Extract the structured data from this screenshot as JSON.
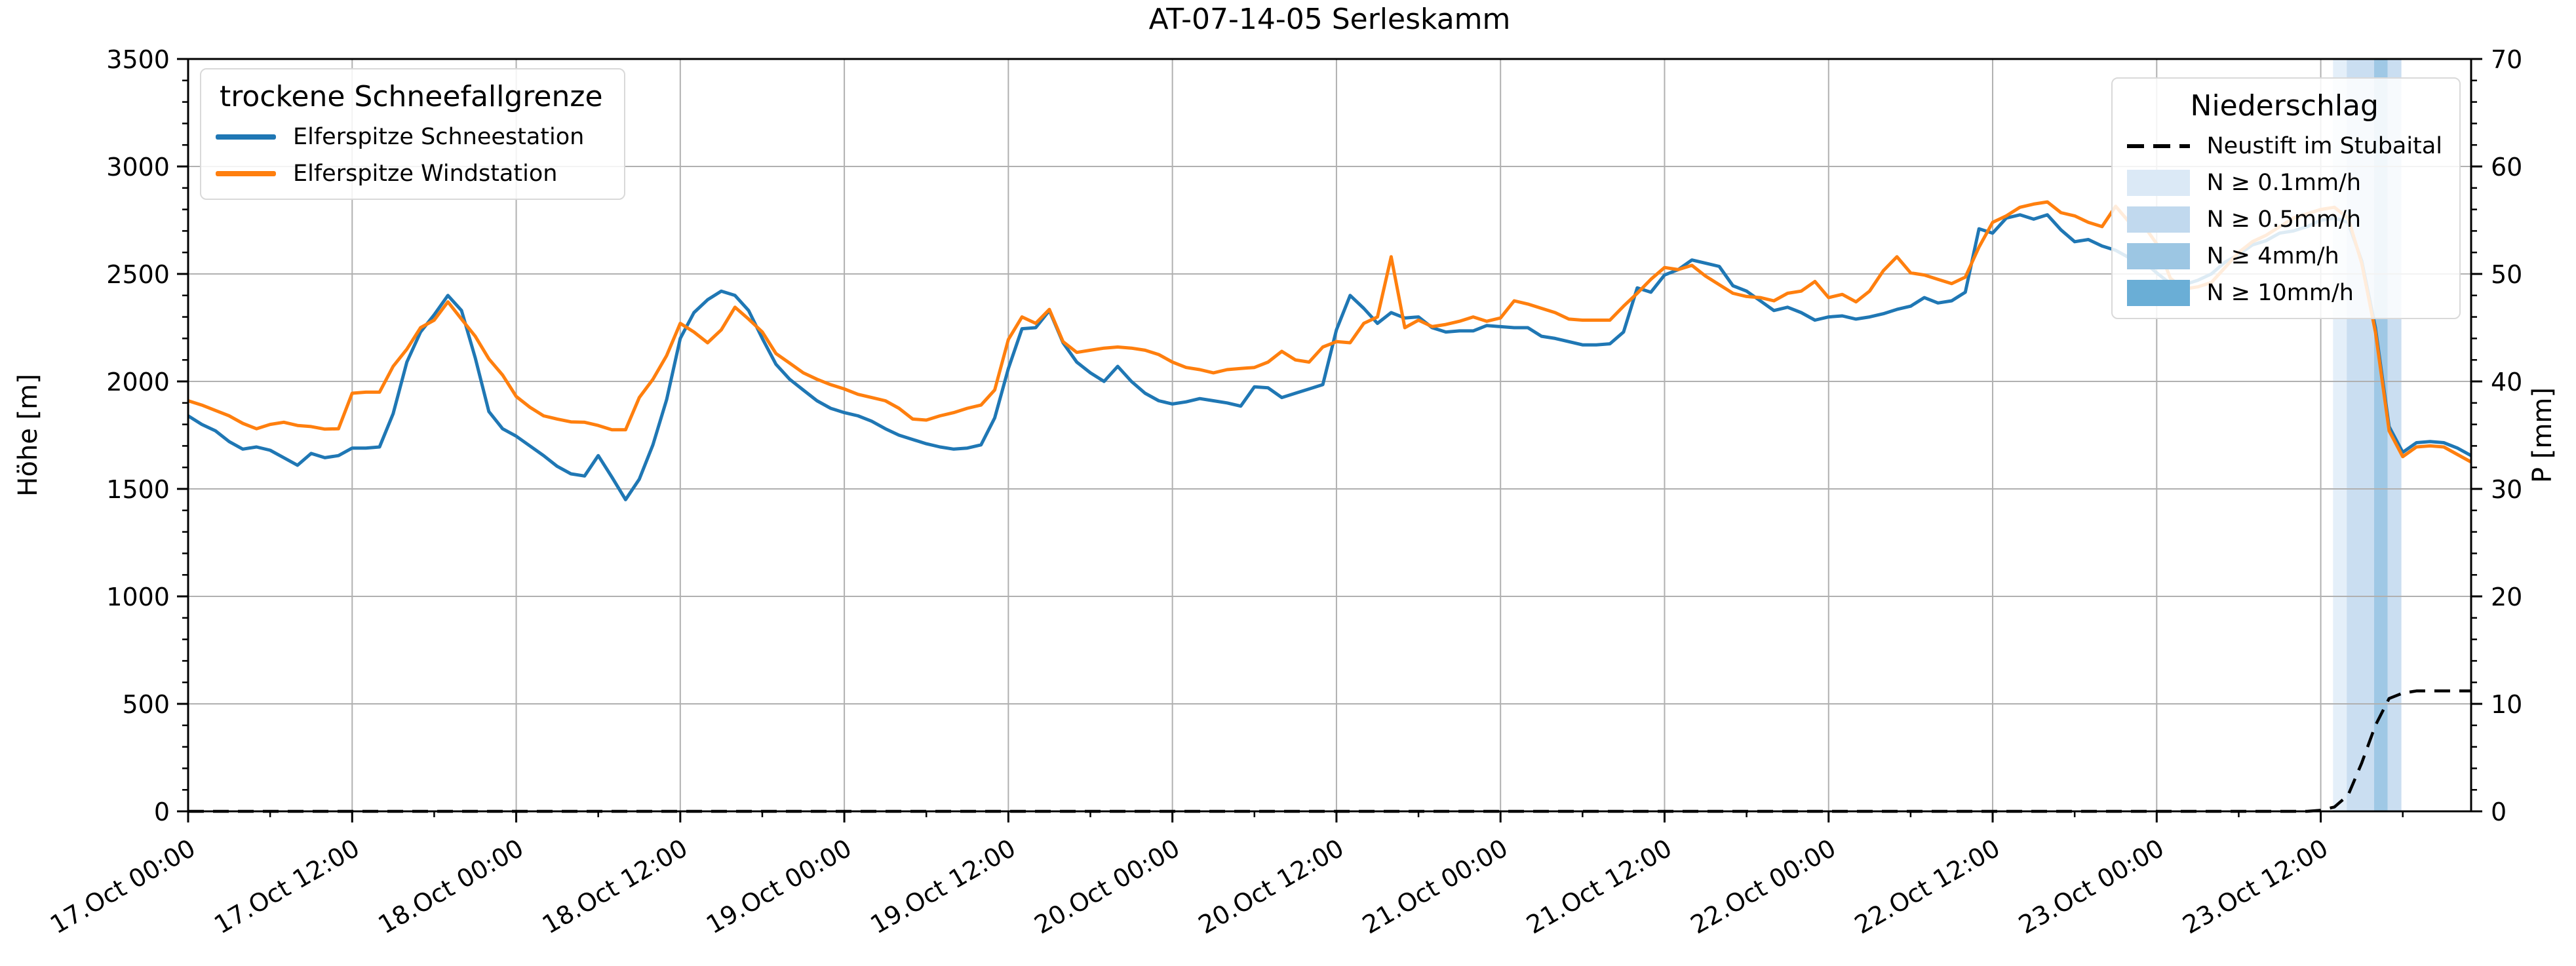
{
  "title": "AT-07-14-05 Serleskamm",
  "axes": {
    "y_left": {
      "label": "Höhe [m]",
      "tick_labels": [
        "0",
        "500",
        "1000",
        "1500",
        "2000",
        "2500",
        "3000",
        "3500"
      ],
      "tick_values": [
        0,
        500,
        1000,
        1500,
        2000,
        2500,
        3000,
        3500
      ],
      "minor_step": 100
    },
    "y_right": {
      "label": "P [mm]",
      "tick_labels": [
        "0",
        "10",
        "20",
        "30",
        "40",
        "50",
        "60",
        "70"
      ],
      "tick_values": [
        0,
        10,
        20,
        30,
        40,
        50,
        60,
        70
      ],
      "minor_step": 2
    },
    "x": {
      "tick_labels": [
        "17.Oct 00:00",
        "17.Oct 12:00",
        "18.Oct 00:00",
        "18.Oct 12:00",
        "19.Oct 00:00",
        "19.Oct 12:00",
        "20.Oct 00:00",
        "20.Oct 12:00",
        "21.Oct 00:00",
        "21.Oct 12:00",
        "22.Oct 00:00",
        "22.Oct 12:00",
        "23.Oct 00:00",
        "23.Oct 12:00"
      ],
      "tick_hours": [
        0,
        12,
        24,
        36,
        48,
        60,
        72,
        84,
        96,
        108,
        120,
        132,
        144,
        156
      ],
      "minor_step_hours": 6
    }
  },
  "legend_left": {
    "title": "trockene Schneefallgrenze",
    "items": [
      {
        "label": "Elferspitze Schneestation",
        "color": "#1f77b4"
      },
      {
        "label": "Elferspitze Windstation",
        "color": "#ff7f0e"
      }
    ]
  },
  "legend_right": {
    "title": "Niederschlag",
    "line_item": {
      "label": "Neustift im Stubaital",
      "color": "#000000"
    },
    "band_items": [
      {
        "label": "N ≥ 0.1mm/h",
        "color": "#dbe9f6"
      },
      {
        "label": "N ≥ 0.5mm/h",
        "color": "#c1d9ee"
      },
      {
        "label": "N ≥ 4mm/h",
        "color": "#9cc6e3"
      },
      {
        "label": "N ≥ 10mm/h",
        "color": "#6aaed6"
      }
    ]
  },
  "chart_data": {
    "type": "line",
    "title": "AT-07-14-05 Serleskamm",
    "x_unit": "hours since 17 Oct 00:00",
    "x_hours_min": 0,
    "x_hours_max": 167,
    "ylim_left": [
      0,
      3500
    ],
    "ylim_right": [
      0,
      70
    ],
    "grid": true,
    "series": [
      {
        "name": "Elferspitze Schneestation",
        "axis": "left",
        "color": "#1f77b4",
        "style": "solid",
        "values": [
          1840,
          1800,
          1770,
          1720,
          1685,
          1695,
          1680,
          1645,
          1610,
          1665,
          1645,
          1655,
          1690,
          1690,
          1695,
          1850,
          2090,
          2230,
          2310,
          2400,
          2330,
          2110,
          1860,
          1780,
          1745,
          1700,
          1655,
          1605,
          1570,
          1560,
          1655,
          1555,
          1450,
          1545,
          1705,
          1915,
          2200,
          2320,
          2380,
          2420,
          2400,
          2330,
          2200,
          2080,
          2010,
          1960,
          1910,
          1875,
          1855,
          1840,
          1815,
          1780,
          1750,
          1730,
          1710,
          1695,
          1685,
          1690,
          1705,
          1830,
          2060,
          2245,
          2250,
          2330,
          2180,
          2090,
          2040,
          2000,
          2070,
          2000,
          1945,
          1910,
          1895,
          1905,
          1920,
          1910,
          1900,
          1885,
          1975,
          1970,
          1925,
          1945,
          1965,
          1985,
          2240,
          2400,
          2340,
          2270,
          2320,
          2295,
          2300,
          2250,
          2230,
          2235,
          2235,
          2260,
          2255,
          2250,
          2250,
          2210,
          2200,
          2185,
          2170,
          2170,
          2175,
          2230,
          2435,
          2415,
          2495,
          2520,
          2565,
          2550,
          2535,
          2445,
          2420,
          2375,
          2330,
          2345,
          2320,
          2285,
          2300,
          2305,
          2290,
          2300,
          2315,
          2335,
          2350,
          2390,
          2365,
          2375,
          2415,
          2710,
          2690,
          2760,
          2775,
          2755,
          2775,
          2705,
          2650,
          2660,
          2630,
          2610,
          2575,
          2560,
          2505,
          2455,
          2450,
          2470,
          2500,
          2555,
          2590,
          2635,
          2655,
          2690,
          2700,
          2720,
          2750,
          2760,
          2740,
          2560,
          2250,
          1790,
          1670,
          1715,
          1720,
          1715,
          1690,
          1655
        ]
      },
      {
        "name": "Elferspitze Windstation",
        "axis": "left",
        "color": "#ff7f0e",
        "style": "solid",
        "values": [
          1910,
          1890,
          1865,
          1840,
          1805,
          1780,
          1800,
          1810,
          1795,
          1790,
          1778,
          1780,
          1945,
          1950,
          1950,
          2070,
          2150,
          2250,
          2285,
          2370,
          2290,
          2210,
          2105,
          2030,
          1930,
          1880,
          1840,
          1825,
          1812,
          1810,
          1795,
          1775,
          1775,
          1925,
          2010,
          2120,
          2270,
          2230,
          2180,
          2240,
          2345,
          2290,
          2230,
          2130,
          2085,
          2040,
          2010,
          1985,
          1965,
          1940,
          1925,
          1910,
          1875,
          1825,
          1820,
          1840,
          1855,
          1875,
          1890,
          1960,
          2195,
          2300,
          2270,
          2335,
          2185,
          2135,
          2145,
          2155,
          2160,
          2155,
          2145,
          2125,
          2090,
          2065,
          2055,
          2040,
          2055,
          2060,
          2065,
          2090,
          2140,
          2100,
          2090,
          2160,
          2185,
          2180,
          2270,
          2300,
          2580,
          2250,
          2285,
          2255,
          2265,
          2280,
          2300,
          2280,
          2295,
          2375,
          2360,
          2340,
          2320,
          2290,
          2285,
          2285,
          2285,
          2350,
          2410,
          2475,
          2530,
          2520,
          2540,
          2490,
          2450,
          2410,
          2395,
          2390,
          2375,
          2410,
          2420,
          2465,
          2390,
          2405,
          2370,
          2420,
          2515,
          2580,
          2505,
          2495,
          2475,
          2455,
          2485,
          2625,
          2740,
          2770,
          2810,
          2825,
          2835,
          2785,
          2770,
          2740,
          2720,
          2815,
          2740,
          2730,
          2640,
          2480,
          2430,
          2440,
          2460,
          2530,
          2600,
          2650,
          2680,
          2720,
          2760,
          2780,
          2800,
          2810,
          2760,
          2550,
          2230,
          1770,
          1650,
          1695,
          1700,
          1695,
          1660,
          1625
        ]
      },
      {
        "name": "Neustift im Stubaital",
        "axis": "right",
        "color": "#000000",
        "style": "dashed",
        "values": [
          0,
          0,
          0,
          0,
          0,
          0,
          0,
          0,
          0,
          0,
          0,
          0,
          0,
          0,
          0,
          0,
          0,
          0,
          0,
          0,
          0,
          0,
          0,
          0,
          0,
          0,
          0,
          0,
          0,
          0,
          0,
          0,
          0,
          0,
          0,
          0,
          0,
          0,
          0,
          0,
          0,
          0,
          0,
          0,
          0,
          0,
          0,
          0,
          0,
          0,
          0,
          0,
          0,
          0,
          0,
          0,
          0,
          0,
          0,
          0,
          0,
          0,
          0,
          0,
          0,
          0,
          0,
          0,
          0,
          0,
          0,
          0,
          0,
          0,
          0,
          0,
          0,
          0,
          0,
          0,
          0,
          0,
          0,
          0,
          0,
          0,
          0,
          0,
          0,
          0,
          0,
          0,
          0,
          0,
          0,
          0,
          0,
          0,
          0,
          0,
          0,
          0,
          0,
          0,
          0,
          0,
          0,
          0,
          0,
          0,
          0,
          0,
          0,
          0,
          0,
          0,
          0,
          0,
          0,
          0,
          0,
          0,
          0,
          0,
          0,
          0,
          0,
          0,
          0,
          0,
          0,
          0,
          0,
          0,
          0,
          0,
          0,
          0,
          0,
          0,
          0,
          0,
          0,
          0,
          0,
          0,
          0,
          0,
          0,
          0,
          0,
          0,
          0,
          0,
          0,
          0,
          0.1,
          0.4,
          1.5,
          4.5,
          8,
          10.5,
          11,
          11.2,
          11.2,
          11.2,
          11.2,
          11.2
        ]
      }
    ],
    "precip_bands": [
      {
        "from_hour": 156.9,
        "to_hour": 157.9,
        "level": "N ≥ 0.1mm/h",
        "color": "#e4eff9"
      },
      {
        "from_hour": 157.9,
        "to_hour": 159.9,
        "level": "N ≥ 0.5mm/h",
        "color": "#cadef1"
      },
      {
        "from_hour": 159.9,
        "to_hour": 160.9,
        "level": "N ≥ 4mm/h",
        "color": "#9fc8e5"
      },
      {
        "from_hour": 160.9,
        "to_hour": 161.9,
        "level": "N ≥ 0.5mm/h",
        "color": "#cadef1"
      }
    ]
  }
}
